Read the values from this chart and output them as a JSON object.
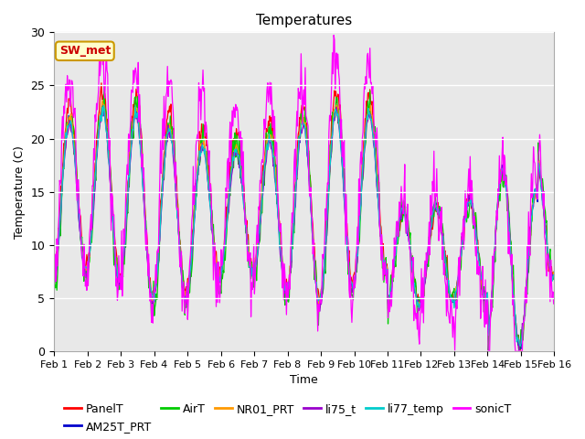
{
  "title": "Temperatures",
  "xlabel": "Time",
  "ylabel": "Temperature (C)",
  "ylim": [
    0,
    30
  ],
  "xlim_days": [
    0,
    15
  ],
  "x_ticks": [
    0,
    1,
    2,
    3,
    4,
    5,
    6,
    7,
    8,
    9,
    10,
    11,
    12,
    13,
    14,
    15
  ],
  "x_tick_labels": [
    "Feb 1",
    "Feb 2",
    "Feb 3",
    "Feb 4",
    "Feb 5",
    "Feb 6",
    "Feb 7",
    "Feb 8",
    "Feb 9",
    "Feb 10",
    "Feb 11",
    "Feb 12",
    "Feb 13",
    "Feb 14",
    "Feb 15",
    "Feb 16"
  ],
  "series_colors": {
    "PanelT": "#ff0000",
    "AM25T_PRT": "#0000cc",
    "AirT": "#00cc00",
    "NR01_PRT": "#ff9900",
    "li75_t": "#9900cc",
    "li77_temp": "#00cccc",
    "sonicT": "#ff00ff"
  },
  "annotation_text": "SW_met",
  "annotation_color": "#cc0000",
  "annotation_bg": "#ffffcc",
  "annotation_border": "#cc9900",
  "background_color": "#e8e8e8",
  "fig_bg": "#ffffff",
  "title_fontsize": 11,
  "axis_fontsize": 9,
  "legend_fontsize": 9,
  "tick_fontsize": 8
}
